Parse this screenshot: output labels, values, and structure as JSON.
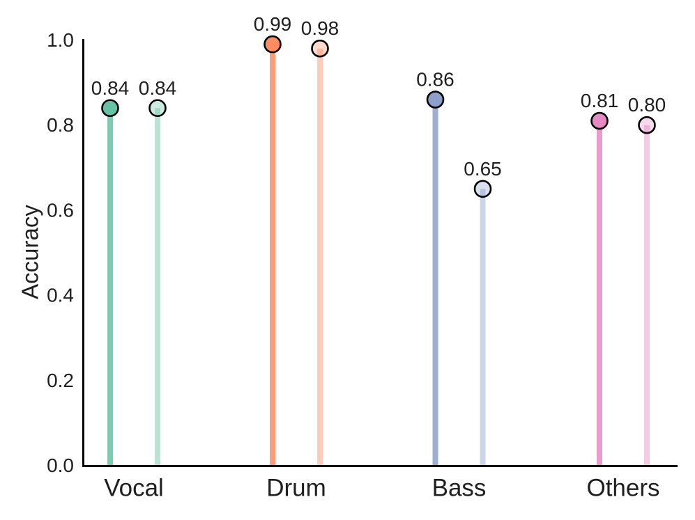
{
  "chart_data": {
    "type": "lollipop",
    "title": "",
    "xlabel": "",
    "ylabel": "Accuracy",
    "ylim": [
      0.0,
      1.0
    ],
    "grid": false,
    "legend": "none",
    "categories": [
      "Vocal",
      "Drum",
      "Bass",
      "Others"
    ],
    "series": [
      {
        "name": "primary",
        "shade": "dark",
        "values": [
          0.84,
          0.99,
          0.86,
          0.81
        ],
        "value_labels": [
          "0.84",
          "0.99",
          "0.86",
          "0.81"
        ]
      },
      {
        "name": "secondary",
        "shade": "light",
        "values": [
          0.84,
          0.98,
          0.65,
          0.8
        ],
        "value_labels": [
          "0.84",
          "0.98",
          "0.65",
          "0.80"
        ]
      }
    ],
    "yticks": {
      "values": [
        0.0,
        0.2,
        0.4,
        0.6,
        0.8,
        1.0
      ],
      "labels": [
        "0.0",
        "0.2",
        "0.4",
        "0.6",
        "0.8",
        "1.0"
      ]
    },
    "colors": {
      "category_palette": [
        "#66c2a5",
        "#fc8d62",
        "#8da0cb",
        "#e78ac3"
      ],
      "dark_stem_alpha": 0.85,
      "dark_fill_alpha": 1.0,
      "light_stem_alpha": 0.45,
      "light_fill_alpha": 0.32,
      "marker_outline": "#000000",
      "axis_color": "#000000",
      "text_color": "#1f1f1f",
      "background": "#ffffff"
    }
  }
}
